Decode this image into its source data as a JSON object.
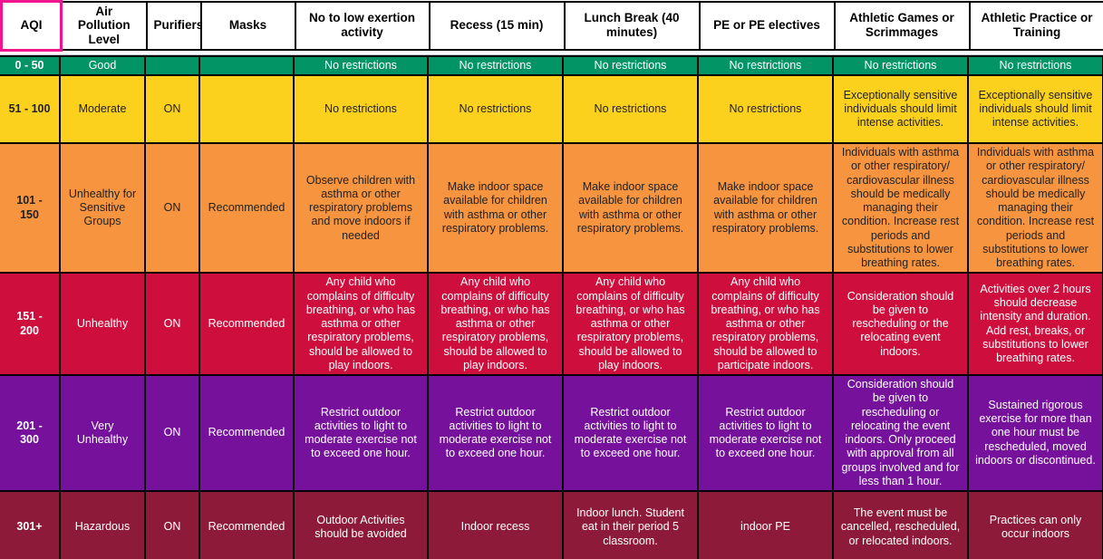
{
  "colors": {
    "selection_border": "#F2148F",
    "grid_border": "#000000",
    "header_bg": "#FFFFFF",
    "row_good": "#029464",
    "row_moderate": "#FBD11E",
    "row_usg": "#F79440",
    "row_unhealthy": "#CE0F3E",
    "row_very_unhealthy": "#75119B",
    "row_hazardous": "#8C1A38"
  },
  "selection": {
    "selected_header_index": 0,
    "selected_cell_label": "AQI"
  },
  "table": {
    "headers": [
      "AQI",
      "Air Pollution Level",
      "Purifiers",
      "Masks",
      "No to low exertion activity",
      "Recess (15 min)",
      "Lunch Break (40 minutes)",
      "PE or PE electives",
      "Athletic Games or Scrimmages",
      "Athletic Practice or Training"
    ],
    "rows": [
      {
        "bg": "#029464",
        "text_color": "#FFFFFF",
        "cells": [
          "0 - 50",
          "Good",
          "",
          "",
          "No restrictions",
          "No restrictions",
          "No restrictions",
          "No restrictions",
          "No restrictions",
          "No restrictions"
        ]
      },
      {
        "bg": "#FBD11E",
        "text_color": "#222222",
        "cells": [
          "51 - 100",
          "Moderate",
          "ON",
          "",
          "No restrictions",
          "No restrictions",
          "No restrictions",
          "No restrictions",
          "Exceptionally sensitive individuals should limit intense activities.",
          "Exceptionally sensitive individuals should limit intense activities."
        ]
      },
      {
        "bg": "#F79440",
        "text_color": "#222222",
        "cells": [
          "101 - 150",
          "Unhealthy for Sensitive Groups",
          "ON",
          "Recommended",
          "Observe children with asthma or other respiratory problems and move indoors if needed",
          "Make indoor space available for children with asthma or other respiratory problems.",
          "Make indoor space available for children with asthma or other respiratory problems.",
          "Make indoor space available for children with asthma or other respiratory problems.",
          "Individuals with asthma or other respiratory/ cardiovascular illness should be medically managing their condition. Increase rest periods and substitutions to lower breathing rates.",
          "Individuals with asthma or other respiratory/ cardiovascular illness should be medically managing their condition. Increase rest periods and substitutions to lower breathing rates."
        ]
      },
      {
        "bg": "#CE0F3E",
        "text_color": "#FFFFFF",
        "cells": [
          "151 - 200",
          "Unhealthy",
          "ON",
          "Recommended",
          "Any child who complains of difficulty breathing, or who has asthma or other respiratory problems, should be allowed to play indoors.",
          "Any child who complains of difficulty breathing, or who has asthma or other respiratory problems, should be allowed to play indoors.",
          "Any child who complains of difficulty breathing, or who has asthma or other respiratory problems, should be allowed to play indoors.",
          "Any child who complains of difficulty breathing, or who has asthma or other respiratory problems, should be allowed to participate indoors.",
          "Consideration should be given to rescheduling or the relocating event indoors.",
          "Activities over 2 hours should decrease intensity and duration. Add rest, breaks, or substitutions to lower breathing rates."
        ]
      },
      {
        "bg": "#75119B",
        "text_color": "#FFFFFF",
        "cells": [
          "201 - 300",
          "Very Unhealthy",
          "ON",
          "Recommended",
          "Restrict outdoor activities to light to moderate exercise not to exceed one hour.",
          "Restrict outdoor activities to light to moderate exercise not to exceed one hour.",
          "Restrict outdoor activities to light to moderate exercise not to exceed one hour.",
          "Restrict outdoor activities to light to moderate exercise not to exceed one hour.",
          "Consideration should be given to rescheduling or relocating the event indoors. Only proceed with approval from all groups involved and for less than 1 hour.",
          "Sustained rigorous exercise for more than one hour must be rescheduled, moved indoors or discontinued."
        ]
      },
      {
        "bg": "#8C1A38",
        "text_color": "#FFFFFF",
        "cells": [
          "301+",
          "Hazardous",
          "ON",
          "Recommended",
          "Outdoor Activities should be avoided",
          "Indoor recess",
          "Indoor lunch. Student eat in their period 5 classroom.",
          "indoor PE",
          "The event must be cancelled, rescheduled, or relocated indoors.",
          "Practices can only occur indoors"
        ]
      }
    ]
  }
}
